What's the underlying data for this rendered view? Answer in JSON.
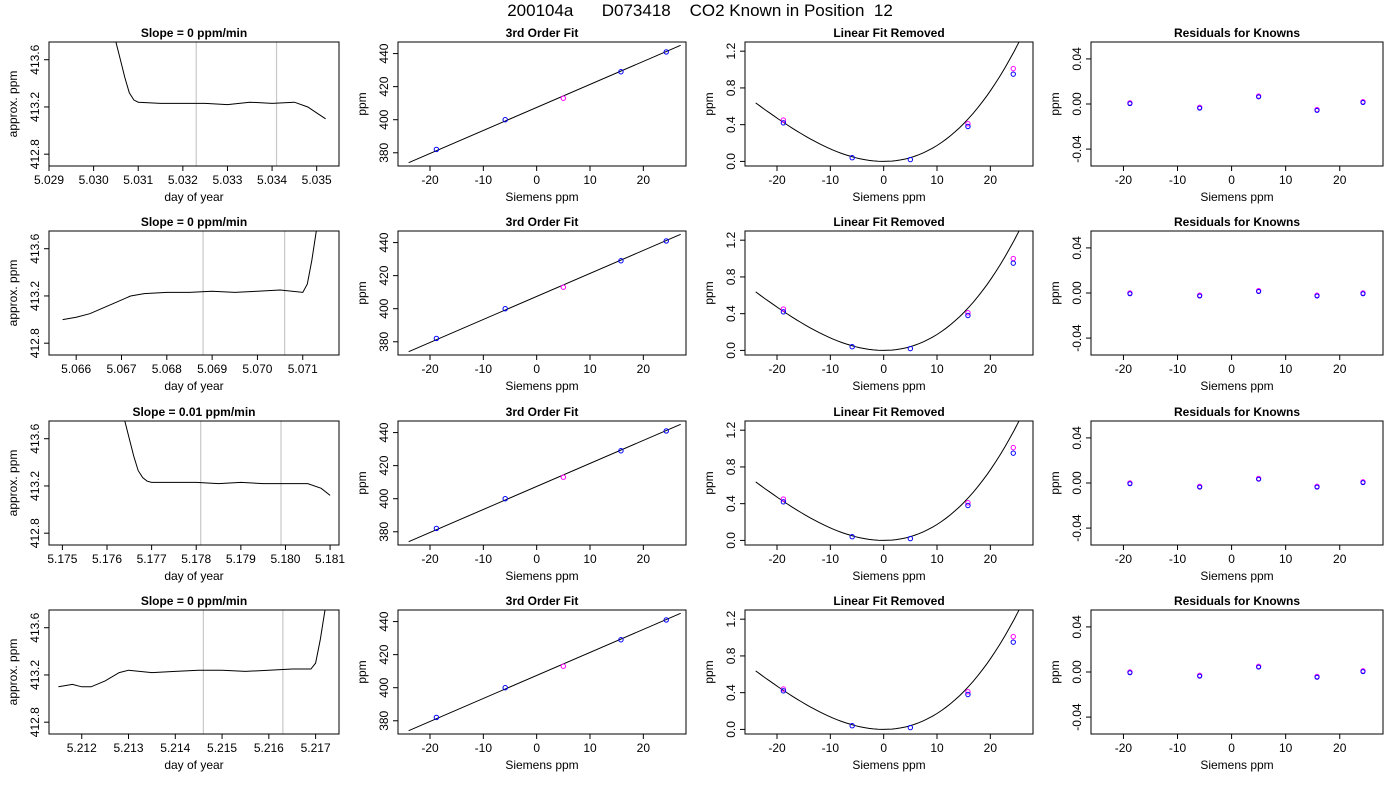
{
  "figure": {
    "title": "200104a      D073418    CO2 Known in Position  12",
    "colors": {
      "axis": "#000000",
      "guide": "#c8c8c8",
      "point_a": "#0000ff",
      "point_b": "#ff00ff",
      "line": "#000000"
    }
  },
  "chart_data": [
    {
      "type": "line",
      "title": "Slope =  0  ppm/min",
      "xlabel": "day of year",
      "ylabel": "approx. ppm",
      "xticks": [
        "5.029",
        "5.030",
        "5.031",
        "5.032",
        "5.033",
        "5.034",
        "5.035"
      ],
      "xlim": [
        5.029,
        5.0355
      ],
      "yticks": [
        "412.8",
        "413.2",
        "413.6"
      ],
      "ylim": [
        412.7,
        413.75
      ],
      "vlines": [
        5.0323,
        5.0341
      ],
      "series": [
        {
          "x": [
            5.0305,
            5.0306,
            5.0307,
            5.0308,
            5.0309,
            5.031,
            5.0315,
            5.032,
            5.0325,
            5.033,
            5.0335,
            5.034,
            5.0345,
            5.0348,
            5.035,
            5.0352
          ],
          "y": [
            413.75,
            413.6,
            413.45,
            413.32,
            413.26,
            413.24,
            413.23,
            413.23,
            413.23,
            413.22,
            413.24,
            413.23,
            413.24,
            413.2,
            413.15,
            413.1
          ]
        }
      ]
    },
    {
      "type": "scatter",
      "title": "3rd Order Fit",
      "xlabel": "Siemens ppm",
      "ylabel": "ppm",
      "xticks": [
        "-20",
        "-10",
        "0",
        "10",
        "20"
      ],
      "xlim": [
        -26,
        28
      ],
      "yticks": [
        "380",
        "400",
        "420",
        "440"
      ],
      "ylim": [
        372,
        447
      ],
      "line": {
        "x": [
          -24,
          27
        ],
        "y": [
          374,
          445
        ]
      },
      "points_a": {
        "x": [
          -18.8,
          -5.9,
          15.8,
          24.3
        ],
        "y": [
          382,
          400,
          429,
          441
        ]
      },
      "points_b": {
        "x": [
          5
        ],
        "y": [
          413
        ]
      }
    },
    {
      "type": "scatter",
      "title": "Linear Fit Removed",
      "xlabel": "Siemens ppm",
      "ylabel": "ppm",
      "xticks": [
        "-20",
        "-10",
        "0",
        "10",
        "20"
      ],
      "xlim": [
        -26,
        28
      ],
      "yticks": [
        "0.0",
        "0.4",
        "0.8",
        "1.2"
      ],
      "ylim": [
        -0.05,
        1.3
      ],
      "curve": "quadratic",
      "points_a": {
        "x": [
          -18.8,
          -5.9,
          5,
          15.8,
          24.3
        ],
        "y": [
          0.42,
          0.04,
          0.02,
          0.38,
          0.95
        ]
      },
      "points_b": {
        "x": [
          -18.8,
          15.8,
          24.3
        ],
        "y": [
          0.45,
          0.41,
          1.01
        ]
      }
    },
    {
      "type": "scatter",
      "title": "Residuals for Knowns",
      "xlabel": "Siemens ppm",
      "ylabel": "ppm",
      "xticks": [
        "-20",
        "-10",
        "0",
        "10",
        "20"
      ],
      "xlim": [
        -26,
        28
      ],
      "yticks": [
        "-0.04",
        "0.00",
        "0.04"
      ],
      "ylim": [
        -0.055,
        0.055
      ],
      "points": {
        "x": [
          -18.8,
          -5.9,
          5,
          15.8,
          24.3
        ],
        "y": [
          0.001,
          -0.003,
          0.007,
          -0.005,
          0.002
        ]
      }
    },
    {
      "type": "line",
      "title": "Slope =  0  ppm/min",
      "xlabel": "day of year",
      "ylabel": "approx. ppm",
      "xticks": [
        "5.066",
        "5.067",
        "5.068",
        "5.069",
        "5.070",
        "5.071"
      ],
      "xlim": [
        5.0654,
        5.0718
      ],
      "yticks": [
        "412.8",
        "413.2",
        "413.6"
      ],
      "ylim": [
        412.7,
        413.75
      ],
      "vlines": [
        5.0688,
        5.0706
      ],
      "series": [
        {
          "x": [
            5.0657,
            5.066,
            5.0663,
            5.0666,
            5.0669,
            5.0672,
            5.0675,
            5.068,
            5.0685,
            5.069,
            5.0695,
            5.07,
            5.0705,
            5.071,
            5.0711,
            5.0712,
            5.0713
          ],
          "y": [
            413.0,
            413.02,
            413.05,
            413.1,
            413.15,
            413.2,
            413.22,
            413.23,
            413.23,
            413.24,
            413.23,
            413.24,
            413.25,
            413.23,
            413.3,
            413.5,
            413.75
          ]
        }
      ]
    },
    {
      "type": "scatter",
      "title": "3rd Order Fit",
      "xlabel": "Siemens ppm",
      "ylabel": "ppm",
      "xticks": [
        "-20",
        "-10",
        "0",
        "10",
        "20"
      ],
      "xlim": [
        -26,
        28
      ],
      "yticks": [
        "380",
        "400",
        "420",
        "440"
      ],
      "ylim": [
        372,
        447
      ],
      "line": {
        "x": [
          -24,
          27
        ],
        "y": [
          374,
          445
        ]
      },
      "points_a": {
        "x": [
          -18.8,
          -5.9,
          15.8,
          24.3
        ],
        "y": [
          382,
          400,
          429,
          441
        ]
      },
      "points_b": {
        "x": [
          5
        ],
        "y": [
          413
        ]
      }
    },
    {
      "type": "scatter",
      "title": "Linear Fit Removed",
      "xlabel": "Siemens ppm",
      "ylabel": "ppm",
      "xticks": [
        "-20",
        "-10",
        "0",
        "10",
        "20"
      ],
      "xlim": [
        -26,
        28
      ],
      "yticks": [
        "0.0",
        "0.4",
        "0.8",
        "1.2"
      ],
      "ylim": [
        -0.05,
        1.3
      ],
      "curve": "quadratic",
      "points_a": {
        "x": [
          -18.8,
          -5.9,
          5,
          15.8,
          24.3
        ],
        "y": [
          0.42,
          0.04,
          0.02,
          0.38,
          0.95
        ]
      },
      "points_b": {
        "x": [
          -18.8,
          15.8,
          24.3
        ],
        "y": [
          0.45,
          0.41,
          1.0
        ]
      }
    },
    {
      "type": "scatter",
      "title": "Residuals for Knowns",
      "xlabel": "Siemens ppm",
      "ylabel": "ppm",
      "xticks": [
        "-20",
        "-10",
        "0",
        "10",
        "20"
      ],
      "xlim": [
        -26,
        28
      ],
      "yticks": [
        "-0.04",
        "0.00",
        "0.04"
      ],
      "ylim": [
        -0.055,
        0.055
      ],
      "points": {
        "x": [
          -18.8,
          -5.9,
          5,
          15.8,
          24.3
        ],
        "y": [
          0.0,
          -0.002,
          0.002,
          -0.002,
          0.0
        ]
      }
    },
    {
      "type": "line",
      "title": "Slope =  0.01  ppm/min",
      "xlabel": "day of year",
      "ylabel": "approx. ppm",
      "xticks": [
        "5.175",
        "5.176",
        "5.177",
        "5.178",
        "5.179",
        "5.180",
        "5.181"
      ],
      "xlim": [
        5.1747,
        5.1812
      ],
      "yticks": [
        "412.8",
        "413.2",
        "413.6"
      ],
      "ylim": [
        412.7,
        413.75
      ],
      "vlines": [
        5.1781,
        5.1799
      ],
      "series": [
        {
          "x": [
            5.1764,
            5.1765,
            5.1766,
            5.1767,
            5.1768,
            5.1769,
            5.177,
            5.1775,
            5.178,
            5.1785,
            5.179,
            5.1795,
            5.18,
            5.1805,
            5.1808,
            5.181
          ],
          "y": [
            413.75,
            413.6,
            413.45,
            413.33,
            413.27,
            413.24,
            413.23,
            413.23,
            413.23,
            413.22,
            413.23,
            413.22,
            413.22,
            413.22,
            413.18,
            413.12
          ]
        }
      ]
    },
    {
      "type": "scatter",
      "title": "3rd Order Fit",
      "xlabel": "Siemens ppm",
      "ylabel": "ppm",
      "xticks": [
        "-20",
        "-10",
        "0",
        "10",
        "20"
      ],
      "xlim": [
        -26,
        28
      ],
      "yticks": [
        "380",
        "400",
        "420",
        "440"
      ],
      "ylim": [
        372,
        447
      ],
      "line": {
        "x": [
          -24,
          27
        ],
        "y": [
          374,
          445
        ]
      },
      "points_a": {
        "x": [
          -18.8,
          -5.9,
          15.8,
          24.3
        ],
        "y": [
          382,
          400,
          429,
          441
        ]
      },
      "points_b": {
        "x": [
          5
        ],
        "y": [
          413
        ]
      }
    },
    {
      "type": "scatter",
      "title": "Linear Fit Removed",
      "xlabel": "Siemens ppm",
      "ylabel": "ppm",
      "xticks": [
        "-20",
        "-10",
        "0",
        "10",
        "20"
      ],
      "xlim": [
        -26,
        28
      ],
      "yticks": [
        "0.0",
        "0.4",
        "0.8",
        "1.2"
      ],
      "ylim": [
        -0.05,
        1.3
      ],
      "curve": "quadratic",
      "points_a": {
        "x": [
          -18.8,
          -5.9,
          5,
          15.8,
          24.3
        ],
        "y": [
          0.42,
          0.04,
          0.02,
          0.38,
          0.95
        ]
      },
      "points_b": {
        "x": [
          -18.8,
          15.8,
          24.3
        ],
        "y": [
          0.45,
          0.41,
          1.01
        ]
      }
    },
    {
      "type": "scatter",
      "title": "Residuals for Knowns",
      "xlabel": "Siemens ppm",
      "ylabel": "ppm",
      "xticks": [
        "-20",
        "-10",
        "0",
        "10",
        "20"
      ],
      "xlim": [
        -26,
        28
      ],
      "yticks": [
        "-0.04",
        "0.00",
        "0.04"
      ],
      "ylim": [
        -0.055,
        0.055
      ],
      "points": {
        "x": [
          -18.8,
          -5.9,
          5,
          15.8,
          24.3
        ],
        "y": [
          0.0,
          -0.003,
          0.004,
          -0.003,
          0.001
        ]
      }
    },
    {
      "type": "line",
      "title": "Slope =  0  ppm/min",
      "xlabel": "day of year",
      "ylabel": "approx. ppm",
      "xticks": [
        "5.212",
        "5.213",
        "5.214",
        "5.215",
        "5.216",
        "5.217"
      ],
      "xlim": [
        5.2113,
        5.2175
      ],
      "yticks": [
        "412.8",
        "413.2",
        "413.6"
      ],
      "ylim": [
        412.7,
        413.75
      ],
      "vlines": [
        5.2146,
        5.2163
      ],
      "series": [
        {
          "x": [
            5.2115,
            5.2118,
            5.212,
            5.2122,
            5.2125,
            5.2128,
            5.213,
            5.2135,
            5.214,
            5.2145,
            5.215,
            5.2155,
            5.216,
            5.2165,
            5.2169,
            5.217,
            5.2171,
            5.2172
          ],
          "y": [
            413.1,
            413.12,
            413.1,
            413.1,
            413.15,
            413.22,
            413.24,
            413.22,
            413.23,
            413.24,
            413.24,
            413.23,
            413.24,
            413.25,
            413.25,
            413.3,
            413.5,
            413.75
          ]
        }
      ]
    },
    {
      "type": "scatter",
      "title": "3rd Order Fit",
      "xlabel": "Siemens ppm",
      "ylabel": "ppm",
      "xticks": [
        "-20",
        "-10",
        "0",
        "10",
        "20"
      ],
      "xlim": [
        -26,
        28
      ],
      "yticks": [
        "380",
        "400",
        "420",
        "440"
      ],
      "ylim": [
        372,
        447
      ],
      "line": {
        "x": [
          -24,
          27
        ],
        "y": [
          374,
          445
        ]
      },
      "points_a": {
        "x": [
          -18.8,
          -5.9,
          15.8,
          24.3
        ],
        "y": [
          382,
          400,
          429,
          441
        ]
      },
      "points_b": {
        "x": [
          5
        ],
        "y": [
          413
        ]
      }
    },
    {
      "type": "scatter",
      "title": "Linear Fit Removed",
      "xlabel": "Siemens ppm",
      "ylabel": "ppm",
      "xticks": [
        "-20",
        "-10",
        "0",
        "10",
        "20"
      ],
      "xlim": [
        -26,
        28
      ],
      "yticks": [
        "0.0",
        "0.4",
        "0.8",
        "1.2"
      ],
      "ylim": [
        -0.05,
        1.3
      ],
      "curve": "quadratic",
      "points_a": {
        "x": [
          -18.8,
          -5.9,
          5,
          15.8,
          24.3
        ],
        "y": [
          0.42,
          0.04,
          0.02,
          0.38,
          0.95
        ]
      },
      "points_b": {
        "x": [
          -18.8,
          15.8,
          24.3
        ],
        "y": [
          0.44,
          0.41,
          1.01
        ]
      }
    },
    {
      "type": "scatter",
      "title": "Residuals for Knowns",
      "xlabel": "Siemens ppm",
      "ylabel": "ppm",
      "xticks": [
        "-20",
        "-10",
        "0",
        "10",
        "20"
      ],
      "xlim": [
        -26,
        28
      ],
      "yticks": [
        "-0.04",
        "0.00",
        "0.04"
      ],
      "ylim": [
        -0.055,
        0.055
      ],
      "points": {
        "x": [
          -18.8,
          -5.9,
          5,
          15.8,
          24.3
        ],
        "y": [
          0.0,
          -0.003,
          0.005,
          -0.004,
          0.001
        ]
      }
    }
  ]
}
